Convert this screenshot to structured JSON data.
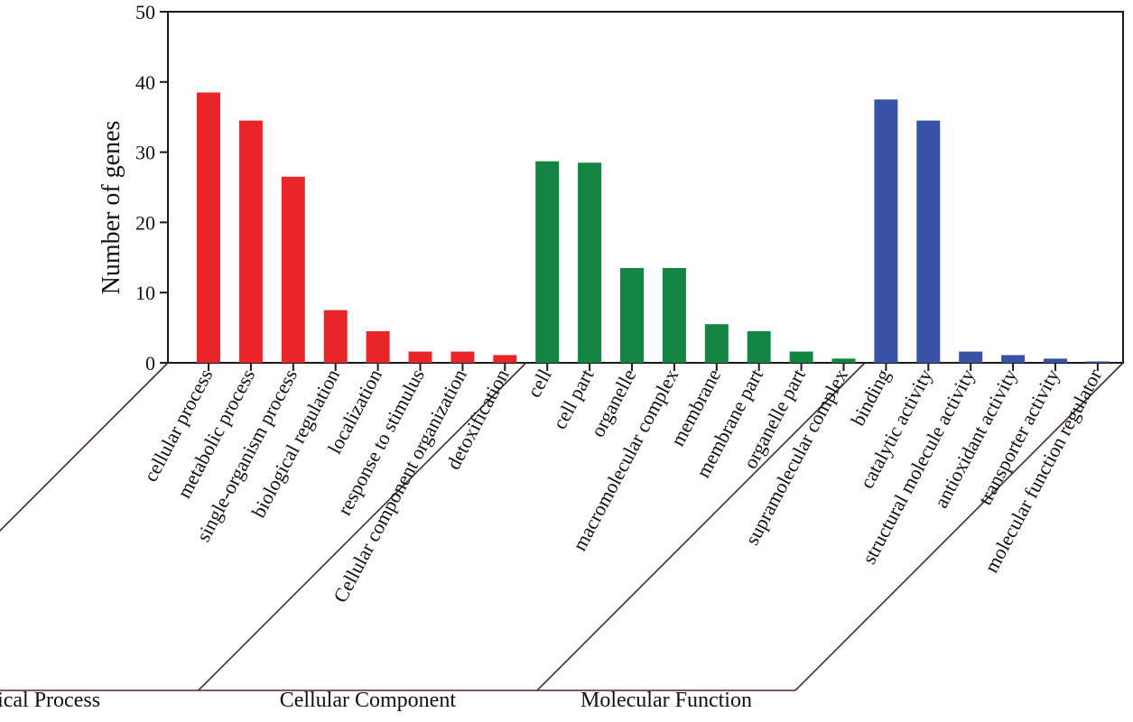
{
  "chart_data": {
    "type": "bar",
    "title": "",
    "xlabel": "",
    "ylabel": "Number of genes",
    "ylim": [
      0,
      50
    ],
    "yticks": [
      "0",
      "10",
      "20",
      "30",
      "40",
      "50"
    ],
    "grid": false,
    "legend": "none",
    "groups": [
      {
        "name": "Biological Process",
        "color": "#e8262a",
        "categories": [
          "cellular process",
          "metabolic process",
          "single-organism process",
          "biological regulation",
          "localization",
          "response to stimulus",
          "Cellular component organization",
          "detoxification"
        ],
        "values": [
          38.5,
          34.5,
          26.5,
          7.5,
          4.5,
          1.6,
          1.6,
          1.1
        ]
      },
      {
        "name": "Cellular Component",
        "color": "#148443",
        "categories": [
          "cell",
          "cell part",
          "organelle",
          "macromolecular complex",
          "membrane",
          "membrane part",
          "organelle part",
          "supramolecular complex"
        ],
        "values": [
          28.7,
          28.5,
          13.5,
          13.5,
          5.5,
          4.5,
          1.6,
          0.6
        ]
      },
      {
        "name": "Molecular Function",
        "color": "#3953a4",
        "categories": [
          "binding",
          "catalytic activity",
          "structural molecule activity",
          "antioxidant activity",
          "transporter activity",
          "molecular function regulator"
        ],
        "values": [
          37.5,
          34.5,
          1.6,
          1.1,
          0.6,
          0.2
        ]
      }
    ]
  }
}
